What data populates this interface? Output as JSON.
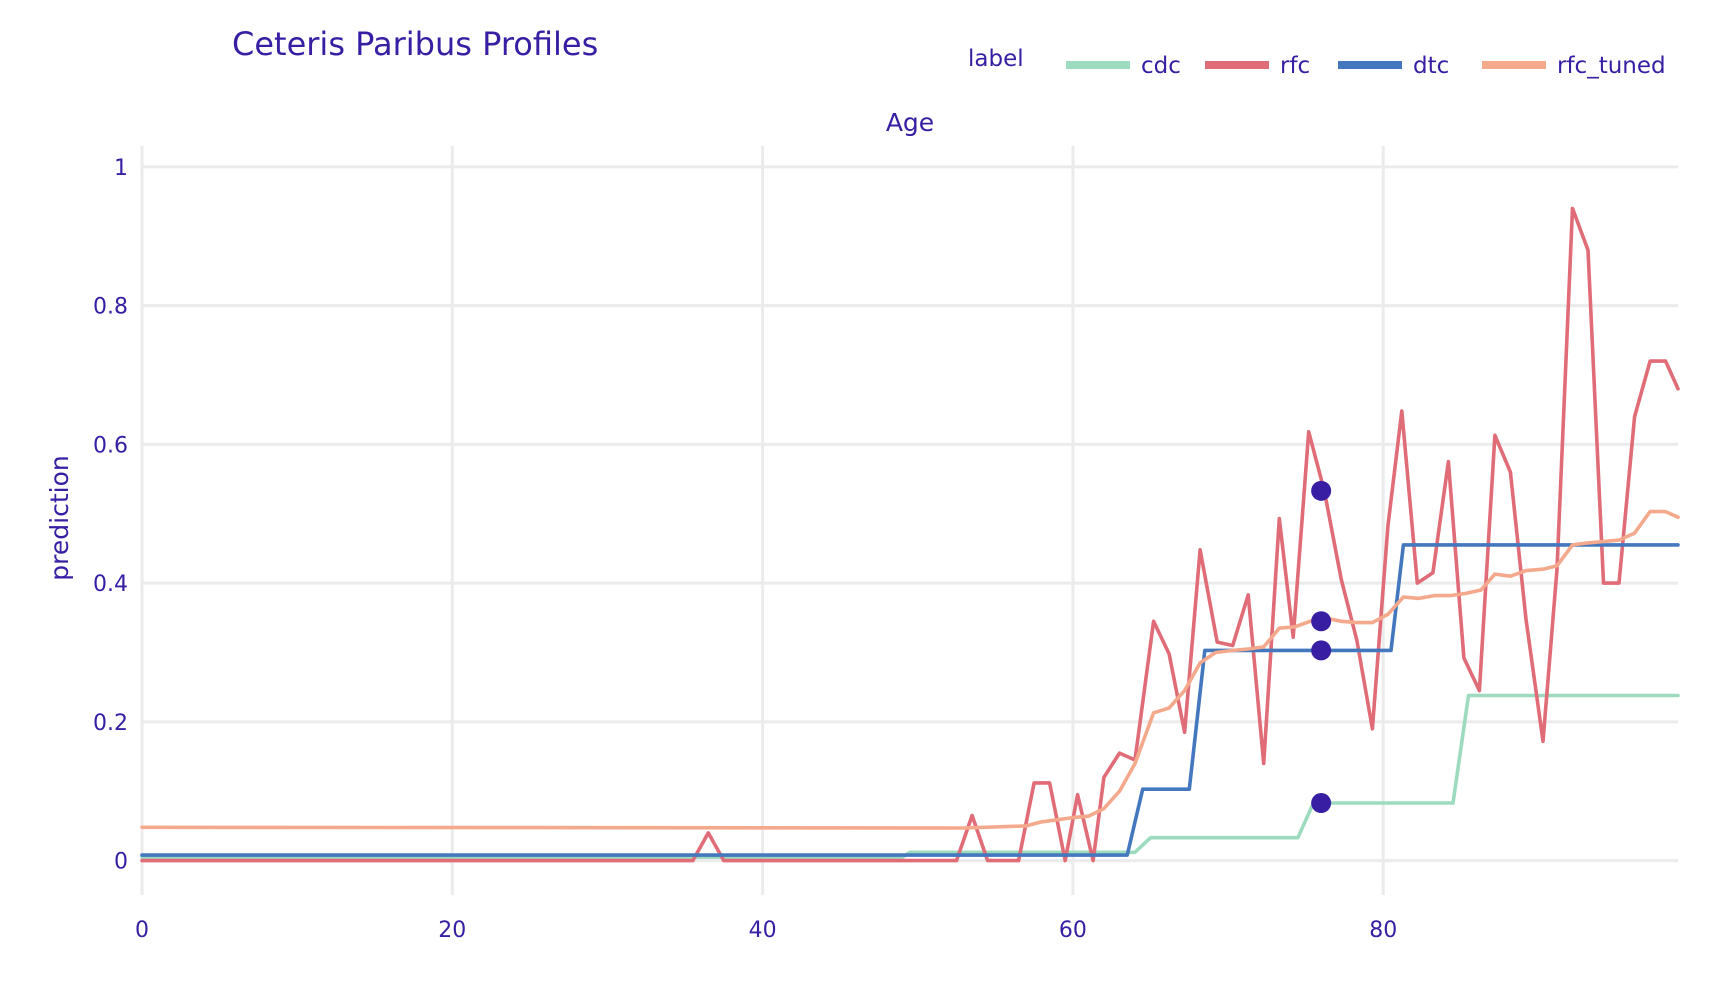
{
  "chart_data": {
    "type": "line",
    "title": "Ceteris Paribus Profiles",
    "subtitle": "Age",
    "xlabel": "",
    "ylabel": "prediction",
    "xlim": [
      0,
      99
    ],
    "ylim": [
      -0.1,
      1.03
    ],
    "xticks": [
      0,
      20,
      40,
      60,
      80
    ],
    "yticks": [
      0,
      0.2,
      0.4,
      0.6,
      0.8,
      1
    ],
    "ytick_labels": [
      "0",
      "0.2",
      "0.4",
      "0.6",
      "0.8",
      "1"
    ],
    "grid": true,
    "legend": {
      "title": "label",
      "placement": "top-right",
      "entries": [
        "cdc",
        "rfc",
        "dtc",
        "rfc_tuned"
      ]
    },
    "series": [
      {
        "name": "cdc",
        "color": "#9cdbbe",
        "points": [
          [
            0,
            0.005
          ],
          [
            49,
            0.005
          ],
          [
            49.5,
            0.012
          ],
          [
            64,
            0.012
          ],
          [
            65,
            0.033
          ],
          [
            74.5,
            0.033
          ],
          [
            75.5,
            0.083
          ],
          [
            84.5,
            0.083
          ],
          [
            85.5,
            0.238
          ],
          [
            99,
            0.238
          ]
        ]
      },
      {
        "name": "rfc",
        "color": "#e06c78",
        "points": [
          [
            0,
            0.0
          ],
          [
            35.5,
            0.0
          ],
          [
            36.5,
            0.04
          ],
          [
            37.5,
            0.0
          ],
          [
            52.5,
            0.0
          ],
          [
            53.5,
            0.065
          ],
          [
            54.5,
            0.0
          ],
          [
            56.5,
            0.0
          ],
          [
            57.5,
            0.112
          ],
          [
            58.5,
            0.112
          ],
          [
            59.5,
            0.0
          ],
          [
            60.3,
            0.095
          ],
          [
            61.3,
            0.0
          ],
          [
            62,
            0.12
          ],
          [
            63,
            0.155
          ],
          [
            64,
            0.145
          ],
          [
            65.2,
            0.345
          ],
          [
            66.2,
            0.298
          ],
          [
            67.2,
            0.185
          ],
          [
            68.2,
            0.448
          ],
          [
            69.3,
            0.315
          ],
          [
            70.3,
            0.31
          ],
          [
            71.3,
            0.383
          ],
          [
            72.3,
            0.14
          ],
          [
            73.3,
            0.493
          ],
          [
            74.2,
            0.322
          ],
          [
            75.2,
            0.618
          ],
          [
            76.2,
            0.533
          ],
          [
            77.3,
            0.405
          ],
          [
            78.3,
            0.318
          ],
          [
            79.3,
            0.19
          ],
          [
            80.3,
            0.482
          ],
          [
            81.2,
            0.648
          ],
          [
            82.2,
            0.4
          ],
          [
            83.2,
            0.415
          ],
          [
            84.2,
            0.575
          ],
          [
            85.2,
            0.292
          ],
          [
            86.2,
            0.245
          ],
          [
            87.2,
            0.613
          ],
          [
            88.2,
            0.56
          ],
          [
            89.2,
            0.348
          ],
          [
            90.3,
            0.172
          ],
          [
            91.2,
            0.42
          ],
          [
            92.2,
            0.94
          ],
          [
            93.2,
            0.88
          ],
          [
            94.2,
            0.4
          ],
          [
            95.2,
            0.4
          ],
          [
            96.2,
            0.64
          ],
          [
            97.2,
            0.72
          ],
          [
            98.2,
            0.72
          ],
          [
            99,
            0.68
          ]
        ]
      },
      {
        "name": "dtc",
        "color": "#4378bf",
        "points": [
          [
            0,
            0.008
          ],
          [
            63.5,
            0.008
          ],
          [
            64.5,
            0.103
          ],
          [
            67.5,
            0.103
          ],
          [
            68.5,
            0.303
          ],
          [
            80.5,
            0.303
          ],
          [
            81.3,
            0.455
          ],
          [
            99,
            0.455
          ]
        ]
      },
      {
        "name": "rfc_tuned",
        "color": "#f5a98c",
        "points": [
          [
            0,
            0.048
          ],
          [
            53,
            0.047
          ],
          [
            57,
            0.05
          ],
          [
            58,
            0.056
          ],
          [
            60,
            0.062
          ],
          [
            61,
            0.064
          ],
          [
            62,
            0.075
          ],
          [
            63,
            0.1
          ],
          [
            64,
            0.14
          ],
          [
            65.2,
            0.213
          ],
          [
            66.2,
            0.22
          ],
          [
            67.2,
            0.245
          ],
          [
            68.2,
            0.285
          ],
          [
            69.2,
            0.3
          ],
          [
            70.3,
            0.303
          ],
          [
            71.3,
            0.305
          ],
          [
            72.3,
            0.308
          ],
          [
            73.3,
            0.335
          ],
          [
            74.3,
            0.337
          ],
          [
            75.3,
            0.345
          ],
          [
            76.2,
            0.35
          ],
          [
            77.3,
            0.345
          ],
          [
            78.3,
            0.343
          ],
          [
            79.3,
            0.343
          ],
          [
            80.3,
            0.355
          ],
          [
            81.3,
            0.38
          ],
          [
            82.3,
            0.378
          ],
          [
            83.3,
            0.382
          ],
          [
            84.3,
            0.382
          ],
          [
            85.3,
            0.385
          ],
          [
            86.3,
            0.39
          ],
          [
            87.2,
            0.413
          ],
          [
            88.2,
            0.41
          ],
          [
            89.2,
            0.418
          ],
          [
            90.3,
            0.42
          ],
          [
            91.2,
            0.425
          ],
          [
            92.2,
            0.455
          ],
          [
            93.2,
            0.458
          ],
          [
            94.2,
            0.46
          ],
          [
            95.2,
            0.462
          ],
          [
            96.2,
            0.472
          ],
          [
            97.2,
            0.503
          ],
          [
            98.2,
            0.503
          ],
          [
            99,
            0.495
          ]
        ]
      }
    ],
    "observations": [
      {
        "series": "rfc",
        "x": 76,
        "y": 0.533
      },
      {
        "series": "rfc_tuned",
        "x": 76,
        "y": 0.345
      },
      {
        "series": "dtc",
        "x": 76,
        "y": 0.303
      },
      {
        "series": "cdc",
        "x": 76,
        "y": 0.083
      }
    ],
    "observation_color": "#371ea3"
  }
}
